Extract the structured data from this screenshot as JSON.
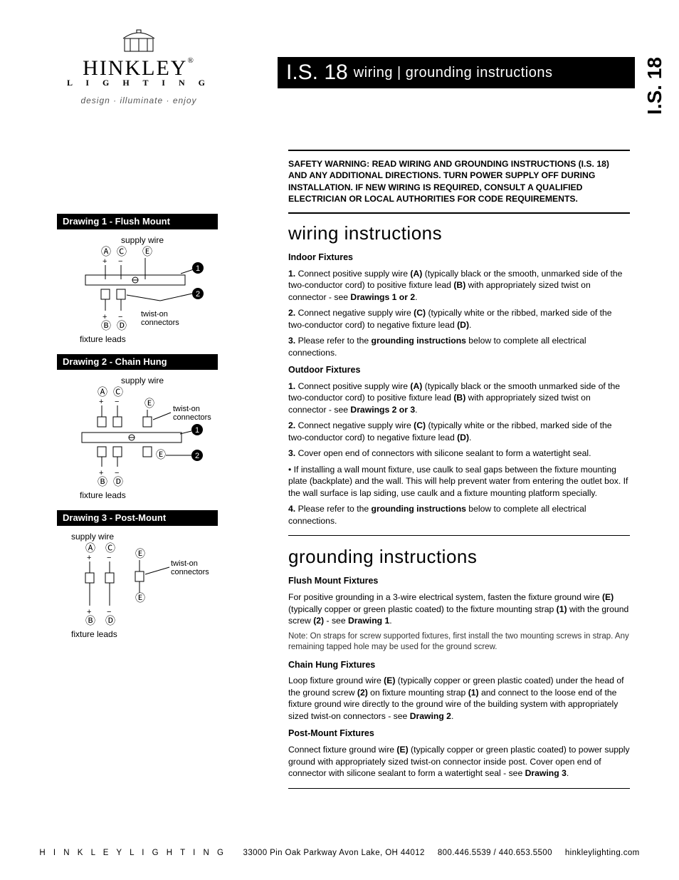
{
  "brand": {
    "name": "HINKLEY",
    "sub": "L I G H T I N G",
    "tag": "design · illuminate · enjoy",
    "reg": "®"
  },
  "title": {
    "code": "I.S. 18",
    "rest": "wiring | grounding instructions",
    "side": "I.S. 18"
  },
  "warn": "SAFETY WARNING: READ WIRING AND GROUNDING INSTRUCTIONS (I.S. 18) AND ANY ADDITIONAL DIRECTIONS. TURN POWER SUPPLY OFF DURING INSTALLATION. IF NEW WIRING IS REQUIRED, CONSULT A QUALIFIED ELECTRICIAN OR LOCAL AUTHORITIES FOR CODE REQUIREMENTS.",
  "drawings": {
    "d1": {
      "label": "Drawing 1 - Flush Mount",
      "top": "supply wire",
      "bottom": "fixture leads",
      "conn": "twist-on\nconnectors"
    },
    "d2": {
      "label": "Drawing 2 - Chain Hung",
      "top": "supply wire",
      "bottom": "fixture leads",
      "conn": "twist-on\nconnectors"
    },
    "d3": {
      "label": "Drawing 3 - Post-Mount",
      "top": "supply wire",
      "bottom": "fixture leads",
      "conn": "twist-on\nconnectors"
    }
  },
  "wiring": {
    "h": "wiring instructions",
    "indoor_h": "Indoor Fixtures",
    "indoor": [
      "Connect positive supply wire <b>(A)</b> (typically black or the smooth, unmarked side of the two-conductor cord) to positive fixture lead <b>(B)</b> with appropriately sized twist on connector - see <b>Drawings 1 or 2</b>.",
      "Connect negative supply wire <b>(C)</b> (typically white or the ribbed, marked side of the two-conductor cord) to negative fixture lead <b>(D)</b>.",
      "Please refer to the <b>grounding instructions</b> below to complete all electrical connections."
    ],
    "outdoor_h": "Outdoor Fixtures",
    "outdoor": [
      "Connect positive supply wire <b>(A)</b> (typically black or the smooth unmarked side of the two-conductor cord) to positive fixture lead <b>(B)</b> with appropriately sized twist on connector - see <b>Drawings 2 or 3</b>.",
      "Connect negative supply wire <b>(C)</b> (typically white or the ribbed, marked side of the two-conductor cord) to negative fixture lead <b>(D)</b>.",
      "Cover open end of connectors with silicone sealant to form a watertight seal."
    ],
    "outdoor_bullet": "If installing a wall mount fixture, use caulk to seal gaps between the fixture mounting plate (backplate) and the wall. This will help prevent water from entering the outlet box. If the wall surface is lap siding, use caulk and a fixture mounting platform specially.",
    "outdoor4": "Please refer to the <b>grounding instructions</b> below to complete all electrical connections."
  },
  "ground": {
    "h": "grounding instructions",
    "flush_h": "Flush Mount Fixtures",
    "flush": "For positive grounding in a 3-wire electrical system, fasten the fixture ground wire <b>(E)</b> (typically copper or green plastic coated) to the fixture mounting strap <b>(1)</b> with the ground screw <b>(2)</b> - see <b>Drawing 1</b>.",
    "flush_note": "Note: On straps for screw supported fixtures, first install the two mounting screws in strap. Any remaining tapped hole may be used for the ground screw.",
    "chain_h": "Chain Hung Fixtures",
    "chain": "Loop fixture ground wire <b>(E)</b> (typically copper or green plastic coated) under the head of the ground screw <b>(2)</b> on fixture mounting strap <b>(1)</b> and connect to the loose end of the fixture ground wire directly to the ground wire of the building system with appropriately sized twist-on connectors - see <b>Drawing 2</b>.",
    "post_h": "Post-Mount Fixtures",
    "post": "Connect fixture ground wire <b>(E)</b> (typically copper or green plastic coated) to power supply ground with appropriately sized twist-on connector inside post. Cover open end of connector with silicone sealant to form a watertight seal - see <b>Drawing 3</b>."
  },
  "footer": {
    "brand": "H I N K L E Y   L I G H T I N G",
    "addr": "33000 Pin Oak Parkway   Avon Lake, OH  44012",
    "ph": "800.446.5539 / 440.653.5500",
    "url": "hinkleylighting.com"
  },
  "glyph": {
    "A": "Ⓐ",
    "B": "Ⓑ",
    "C": "Ⓒ",
    "D": "Ⓓ",
    "E": "Ⓔ",
    "1": "❶",
    "2": "❷",
    "plus": "+",
    "minus": "−"
  }
}
